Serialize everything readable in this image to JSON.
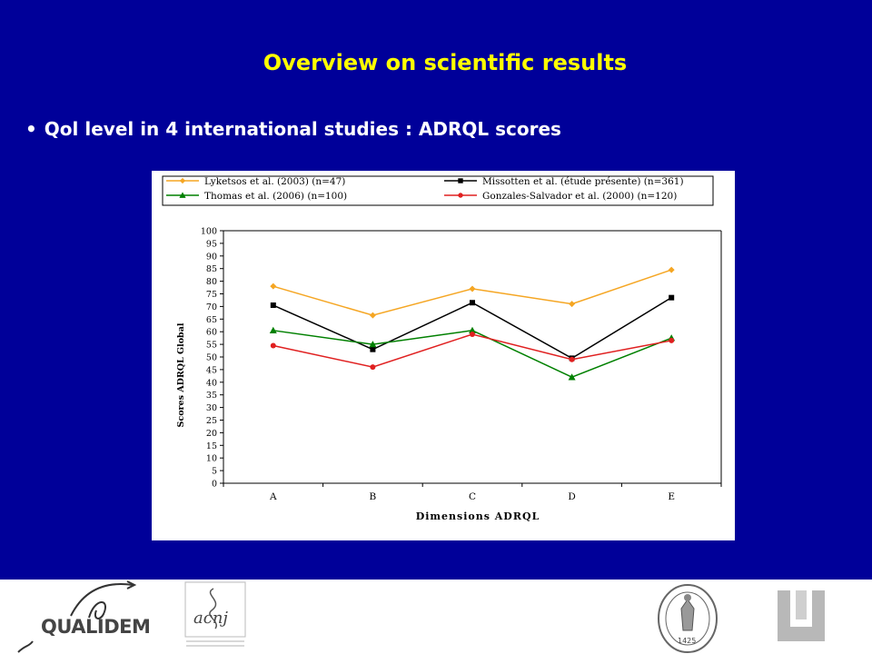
{
  "slide": {
    "title": "Overview on scientific results",
    "bullet_symbol": "•",
    "bullet_text": "Qol level in 4 international studies : ADRQL scores",
    "background_color": "#000099",
    "title_color": "#ffff00"
  },
  "chart_data": {
    "type": "line",
    "title": "",
    "xlabel": "Dimensions ADRQL",
    "ylabel": "Scores ADRQL Global",
    "categories": [
      "A",
      "B",
      "C",
      "D",
      "E"
    ],
    "ylim": [
      0,
      100
    ],
    "yticks": [
      0,
      5,
      10,
      15,
      20,
      25,
      30,
      35,
      40,
      45,
      50,
      55,
      60,
      65,
      70,
      75,
      80,
      85,
      90,
      95,
      100
    ],
    "grid": false,
    "legend_position": "top",
    "series": [
      {
        "name": "Lyketsos et al. (2003) (n=47)",
        "color": "#f5a623",
        "marker": "diamond",
        "values": [
          78,
          66.5,
          77,
          71,
          84.5
        ]
      },
      {
        "name": "Missotten et al. (étude présente) (n=361)",
        "color": "#000000",
        "marker": "square",
        "values": [
          70.5,
          53,
          71.5,
          49.5,
          73.5
        ]
      },
      {
        "name": "Thomas et al. (2006) (n=100)",
        "color": "#008000",
        "marker": "triangle",
        "values": [
          60.5,
          55,
          60.5,
          42,
          57.5
        ]
      },
      {
        "name": "Gonzales-Salvador et al. (2000) (n=120)",
        "color": "#e02020",
        "marker": "circle",
        "values": [
          54.5,
          46,
          59,
          49,
          56.5
        ]
      }
    ]
  },
  "footer": {
    "logos": [
      "qualidem-logo",
      "academic-center-logo",
      "university-seal-logo",
      "university-u-logo"
    ],
    "qualidem_text": "QUALIDEM",
    "acad_text": "acnj",
    "seal_year": "1425"
  }
}
